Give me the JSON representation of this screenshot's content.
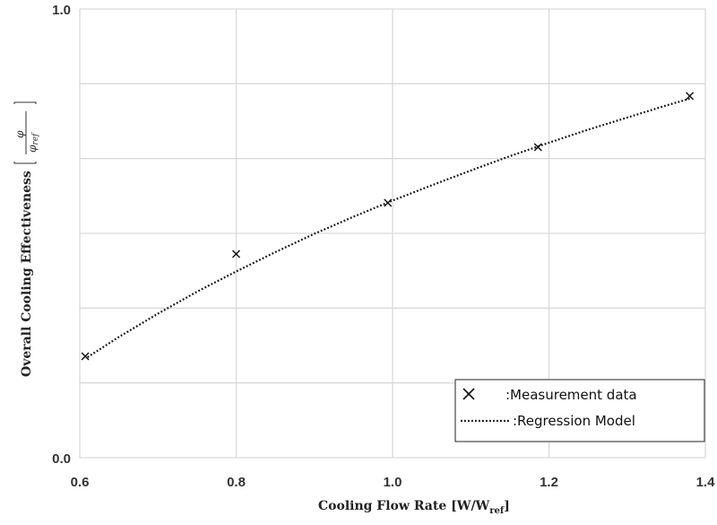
{
  "chart_data": {
    "type": "scatter",
    "xlabel": "Cooling Flow Rate [W/W",
    "xlabel_sub": "ref",
    "xlabel_end": "]",
    "ylabel": "Overall Cooling Effectiveness",
    "ylabel_unit_num": "φ",
    "ylabel_unit_den": "φ",
    "ylabel_unit_den_sub": "ref",
    "xlim": [
      0.6,
      1.4
    ],
    "ylim": [
      0.0,
      1.0
    ],
    "x_ticks": [
      "0.6",
      "0.8",
      "1.0",
      "1.2",
      "1.4"
    ],
    "y_ticks": [
      "0.0",
      "1.0"
    ],
    "y_grid_divisions": 6,
    "grid": true,
    "legend_position": "bottom-right",
    "series": [
      {
        "name": ":Measurement data",
        "type": "scatter",
        "marker": "x",
        "color": "#111111",
        "x": [
          0.607,
          0.8,
          0.994,
          1.186,
          1.38
        ],
        "y": [
          0.226,
          0.454,
          0.568,
          0.692,
          0.806
        ]
      },
      {
        "name": ":Regression Model",
        "type": "line",
        "style": "dotted",
        "color": "#111111",
        "x": [
          0.61,
          0.65,
          0.7,
          0.75,
          0.8,
          0.85,
          0.9,
          0.95,
          1.0,
          1.05,
          1.1,
          1.15,
          1.2,
          1.25,
          1.3,
          1.35,
          1.38
        ],
        "y": [
          0.224,
          0.269,
          0.321,
          0.37,
          0.415,
          0.458,
          0.499,
          0.537,
          0.573,
          0.607,
          0.64,
          0.672,
          0.702,
          0.731,
          0.758,
          0.785,
          0.8
        ]
      }
    ]
  }
}
